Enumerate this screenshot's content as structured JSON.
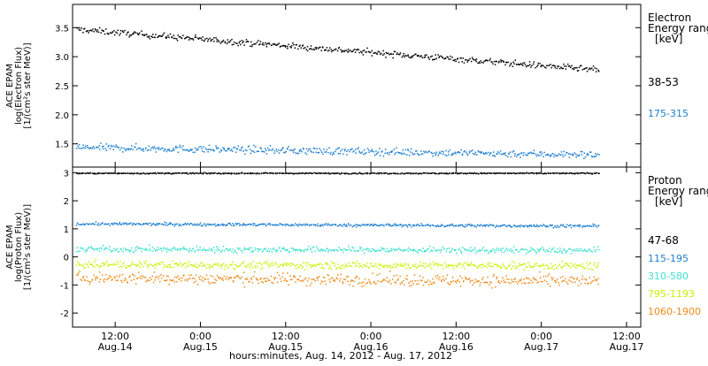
{
  "chart_data": {
    "type": "scatter",
    "xlabel": "hours:minutes, Aug. 14, 2012 - Aug. 17, 2012",
    "x_ticks": [
      {
        "t": 12,
        "line1": "12:00",
        "line2": "Aug.14"
      },
      {
        "t": 24,
        "line1": "0:00",
        "line2": "Aug.15"
      },
      {
        "t": 36,
        "line1": "12:00",
        "line2": "Aug.15"
      },
      {
        "t": 48,
        "line1": "0:00",
        "line2": "Aug.16"
      },
      {
        "t": 60,
        "line1": "12:00",
        "line2": "Aug.16"
      },
      {
        "t": 72,
        "line1": "0:00",
        "line2": "Aug.17"
      },
      {
        "t": 84,
        "line1": "12:00",
        "line2": "Aug.17"
      }
    ],
    "xlim": [
      6,
      86
    ],
    "data_end_t": 80,
    "panels": [
      {
        "id": "electron",
        "ylabel_lines": [
          "ACE EPAM",
          "log(Electron Flux)",
          "[1/(cm²s ster MeV)]"
        ],
        "ylim": [
          1.1,
          3.9
        ],
        "y_ticks": [
          1.5,
          2.0,
          2.5,
          3.0,
          3.5
        ],
        "y_tick_labels": [
          "1.5",
          "2.0",
          "2.5",
          "3.0",
          "3.5"
        ],
        "legend_title": [
          "Electron",
          "Energy ranges",
          "[keV]"
        ],
        "series": [
          {
            "name": "38-53",
            "color": "#000000",
            "start": 3.48,
            "end": 2.78,
            "noise": 0.05
          },
          {
            "name": "175-315",
            "color": "#1f7fd0",
            "start": 1.45,
            "end": 1.32,
            "noise": 0.06
          }
        ]
      },
      {
        "id": "proton",
        "ylabel_lines": [
          "ACE EPAM",
          "log(Proton Flux)",
          "[1/(cm²s ster MeV)]"
        ],
        "ylim": [
          -2.5,
          3.2
        ],
        "y_ticks": [
          -2,
          -1,
          0,
          1,
          2,
          3
        ],
        "y_tick_labels": [
          "-2",
          "-1",
          "0",
          "1",
          "2",
          "3"
        ],
        "legend_title": [
          "Proton",
          "Energy ranges",
          "[keV]"
        ],
        "series": [
          {
            "name": "47-68",
            "color": "#000000",
            "start": 3.0,
            "end": 3.0,
            "noise": 0.02
          },
          {
            "name": "115-195",
            "color": "#1f7fd0",
            "start": 1.2,
            "end": 1.12,
            "noise": 0.05
          },
          {
            "name": "310-580",
            "color": "#3fe0d0",
            "start": 0.3,
            "end": 0.25,
            "noise": 0.1
          },
          {
            "name": "795-1193",
            "color": "#c8f000",
            "start": -0.25,
            "end": -0.3,
            "noise": 0.12
          },
          {
            "name": "1060-1900",
            "color": "#f08a1a",
            "start": -0.72,
            "end": -0.85,
            "noise": 0.2
          }
        ]
      }
    ]
  }
}
